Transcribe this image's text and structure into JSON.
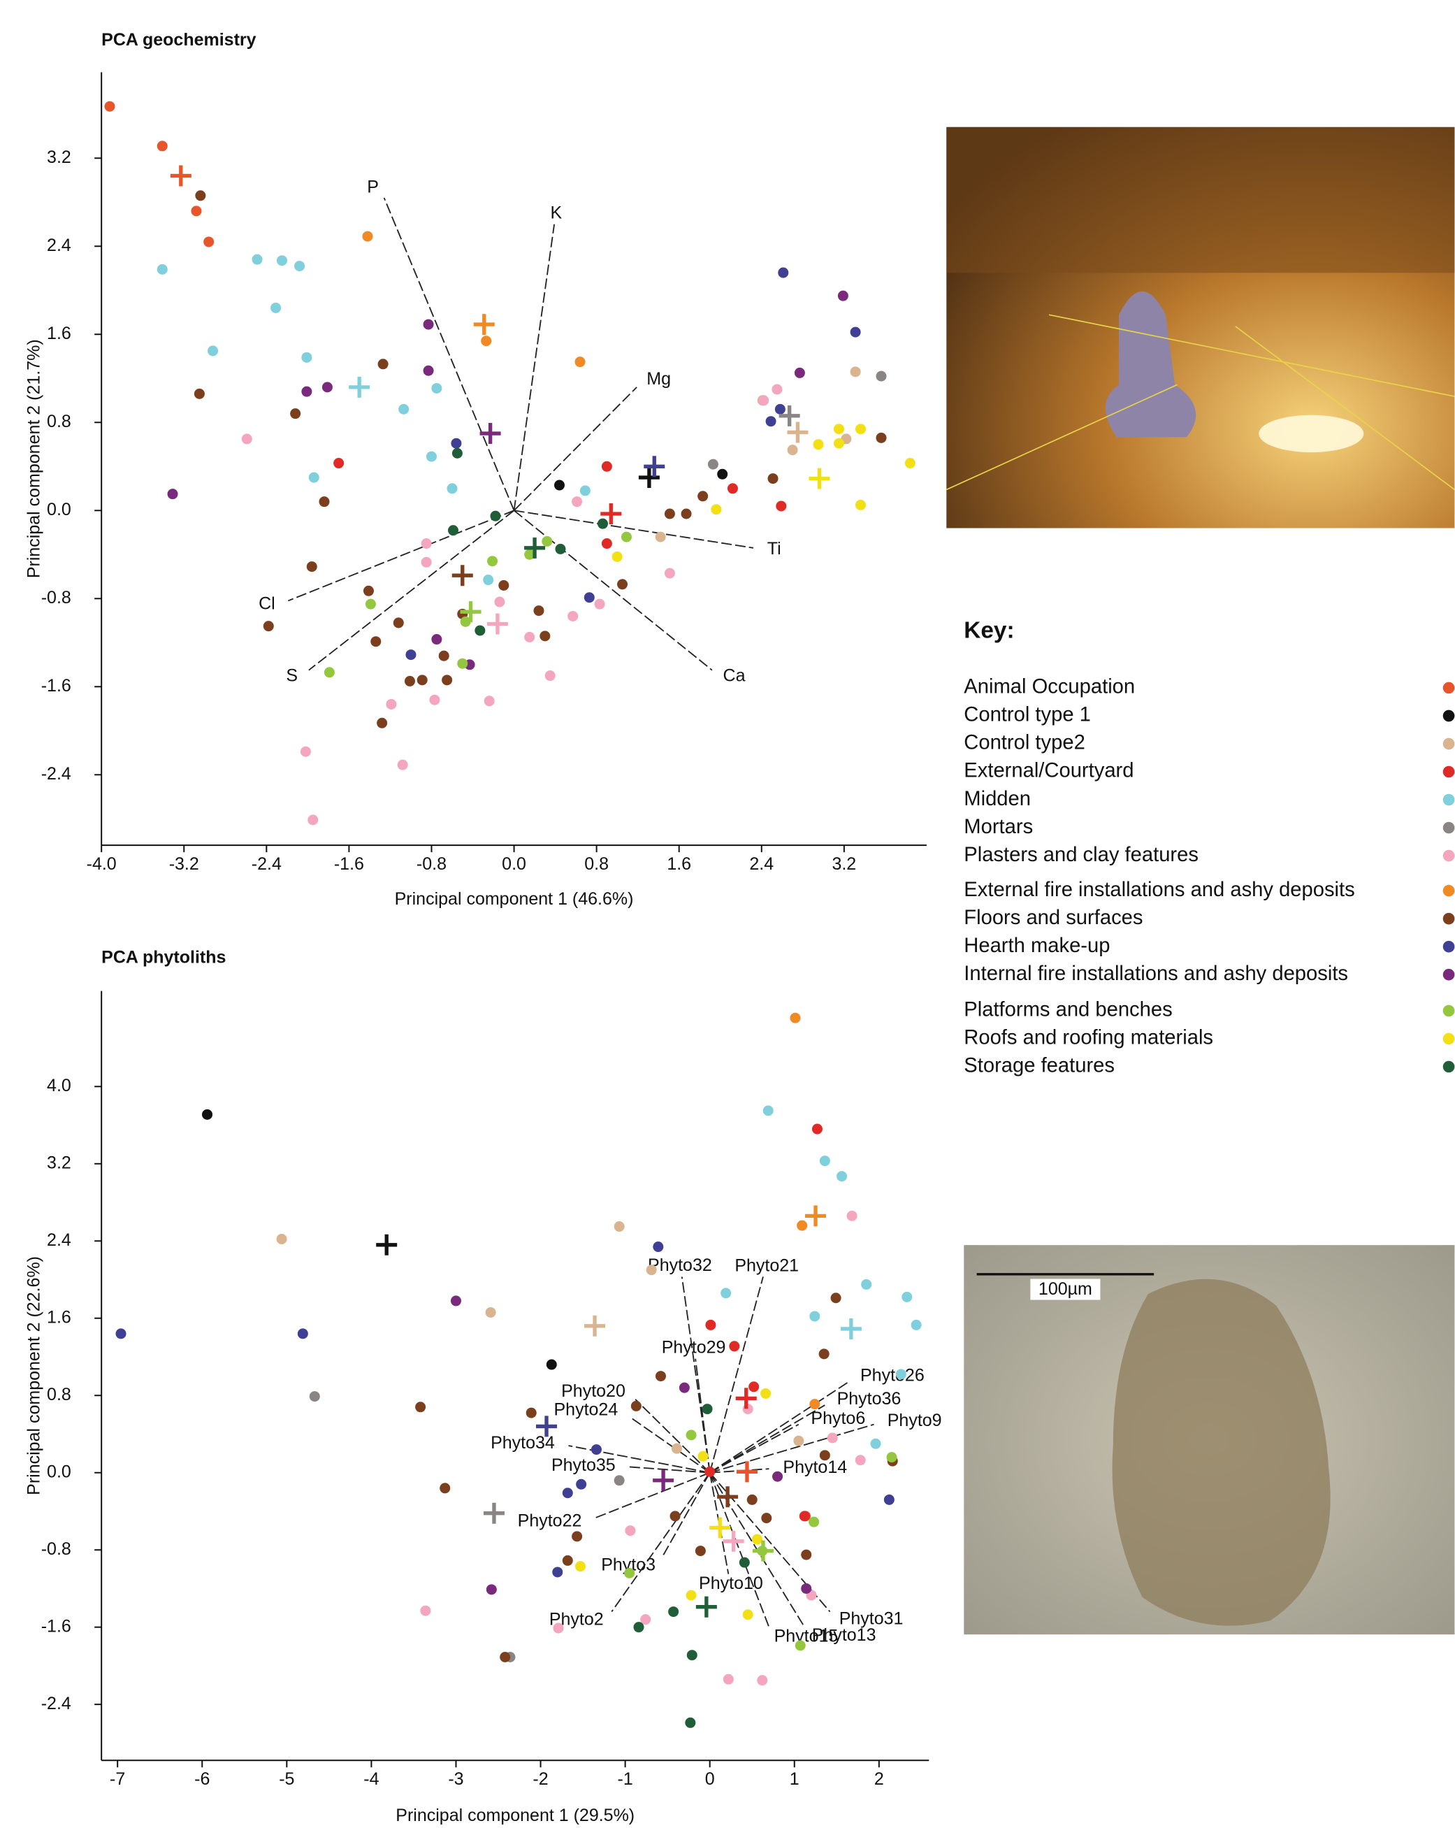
{
  "chart_data": [
    {
      "type": "scatter",
      "title": "PCA geochemistry",
      "x_label": "Principal component 1 (46.6%)",
      "y_label": "Principal component 2 (21.7%)",
      "xlim": [
        -4.0,
        4.0
      ],
      "ylim": [
        -3.04,
        3.98
      ],
      "xticks": [
        {
          "value": -4.0,
          "label": "-4.0"
        },
        -3.2,
        -2.4,
        -1.6,
        -0.8,
        {
          "value": 0,
          "label": "0.0"
        },
        0.8,
        1.6,
        2.4,
        3.2
      ],
      "yticks": [
        -2.4,
        -1.6,
        -0.8,
        {
          "value": 0,
          "label": "0.0"
        },
        0.8,
        1.6,
        2.4,
        3.2
      ],
      "vectors": [
        {
          "label": "P",
          "x": -1.26,
          "y": 2.84
        },
        {
          "label": "K",
          "x": 0.39,
          "y": 2.6
        },
        {
          "label": "Mg",
          "x": 1.19,
          "y": 1.12
        },
        {
          "label": "Ti",
          "x": 2.32,
          "y": -0.34
        },
        {
          "label": "Ca",
          "x": 1.92,
          "y": -1.45
        },
        {
          "label": "S",
          "x": -1.99,
          "y": -1.45
        },
        {
          "label": "Cl",
          "x": -2.19,
          "y": -0.82
        }
      ],
      "series": [
        {
          "name": "Animal Occupation",
          "color": "#e8552a",
          "x": [
            -3.92,
            -3.41,
            -3.08,
            -2.96
          ],
          "y": [
            3.67,
            3.31,
            2.72,
            2.44
          ],
          "centroid": [
            -3.23,
            3.04
          ]
        },
        {
          "name": "Control type 1",
          "color": "#111111",
          "x": [
            0.44,
            2.02
          ],
          "y": [
            0.23,
            0.33
          ],
          "centroid": [
            1.31,
            0.3
          ]
        },
        {
          "name": "Control type2",
          "color": "#d9b48f",
          "x": [
            1.42,
            2.41,
            2.7,
            3.22,
            3.31
          ],
          "y": [
            -0.24,
            1.0,
            0.55,
            0.65,
            1.26
          ],
          "centroid": [
            2.75,
            0.71
          ]
        },
        {
          "name": "External/Courtyard",
          "color": "#e02a26",
          "x": [
            -1.7,
            0.9,
            0.9,
            2.12,
            2.59
          ],
          "y": [
            0.43,
            0.4,
            -0.3,
            0.2,
            0.04
          ],
          "centroid": [
            0.94,
            -0.03
          ]
        },
        {
          "name": "Midden",
          "color": "#7fcfdc",
          "x": [
            -3.41,
            -2.49,
            -2.25,
            -2.08,
            -2.31,
            -2.92,
            -2.01,
            -1.94,
            -1.07,
            -0.75,
            -0.8,
            -0.6,
            -0.25,
            0.69
          ],
          "y": [
            2.19,
            2.28,
            2.27,
            2.22,
            1.84,
            1.45,
            1.39,
            0.3,
            0.92,
            1.11,
            0.49,
            0.2,
            -0.63,
            0.18
          ],
          "centroid": [
            -1.5,
            1.12
          ]
        },
        {
          "name": "Mortars",
          "color": "#8a8584",
          "x": [
            1.93,
            3.56
          ],
          "y": [
            0.42,
            1.22
          ],
          "centroid": [
            2.67,
            0.86
          ]
        },
        {
          "name": "Plasters and clay features",
          "color": "#f4a6bf",
          "x": [
            -2.59,
            -0.85,
            -0.85,
            -0.14,
            0.15,
            0.35,
            -1.19,
            -0.77,
            -0.24,
            -2.02,
            -1.08,
            -1.95,
            0.61,
            1.51,
            0.83,
            0.57,
            2.55,
            2.42
          ],
          "y": [
            0.65,
            -0.3,
            -0.47,
            -0.83,
            -1.15,
            -1.5,
            -1.76,
            -1.72,
            -1.73,
            -2.19,
            -2.31,
            -2.81,
            0.08,
            -0.57,
            -0.85,
            -0.96,
            1.1,
            1.0
          ],
          "centroid": [
            -0.16,
            -1.03
          ]
        },
        {
          "name": "External fire installations and ashy deposits",
          "color": "#f08a24",
          "x": [
            -1.42,
            0.64,
            -0.27
          ],
          "y": [
            2.49,
            1.35,
            1.54
          ],
          "centroid": [
            -0.29,
            1.69
          ]
        },
        {
          "name": "Floors and surfaces",
          "color": "#7b3f1e",
          "x": [
            -3.04,
            -3.05,
            -2.12,
            -1.27,
            -1.84,
            -1.96,
            -2.38,
            -1.41,
            -1.12,
            -1.34,
            -1.01,
            -0.68,
            -0.89,
            -0.65,
            -1.28,
            -0.5,
            -0.1,
            0.24,
            0.3,
            1.05,
            1.51,
            1.67,
            1.83,
            2.51,
            3.56
          ],
          "y": [
            2.86,
            1.06,
            0.88,
            1.33,
            0.08,
            -0.51,
            -1.05,
            -0.73,
            -1.02,
            -1.19,
            -1.55,
            -1.32,
            -1.54,
            -1.54,
            -1.93,
            -0.94,
            -0.68,
            -0.91,
            -1.14,
            -0.67,
            -0.03,
            -0.03,
            0.13,
            0.29,
            0.66
          ],
          "centroid": [
            -0.5,
            -0.59
          ]
        },
        {
          "name": "Hearth make-up",
          "color": "#3f3f94",
          "x": [
            2.61,
            3.31,
            2.58,
            2.49,
            -0.56,
            -1.0,
            0.73
          ],
          "y": [
            2.16,
            1.62,
            0.92,
            0.81,
            0.61,
            -1.31,
            -0.79
          ],
          "centroid": [
            1.36,
            0.4
          ]
        },
        {
          "name": "Internal fire installations and ashy deposits",
          "color": "#7a2a7c",
          "x": [
            -3.31,
            -2.01,
            -1.81,
            -0.83,
            -0.83,
            3.19,
            2.77,
            -0.75,
            -0.43
          ],
          "y": [
            0.15,
            1.08,
            1.12,
            1.69,
            1.27,
            1.95,
            1.25,
            -1.17,
            -1.4
          ],
          "centroid": [
            -0.23,
            0.7
          ]
        },
        {
          "name": "Platforms and benches",
          "color": "#93c83e",
          "x": [
            -1.79,
            -1.39,
            -0.5,
            -0.21,
            -0.47,
            0.32,
            0.15,
            1.09
          ],
          "y": [
            -1.47,
            -0.85,
            -1.39,
            -0.46,
            -1.01,
            -0.28,
            -0.4,
            -0.24
          ],
          "centroid": [
            -0.42,
            -0.92
          ]
        },
        {
          "name": "Roofs and roofing materials",
          "color": "#f2e014",
          "x": [
            1.0,
            1.96,
            2.95,
            3.15,
            3.36,
            3.84,
            3.36,
            3.15
          ],
          "y": [
            -0.42,
            0.01,
            0.6,
            0.74,
            0.74,
            0.43,
            0.05,
            0.61
          ],
          "centroid": [
            2.96,
            0.29
          ]
        },
        {
          "name": "Storage features",
          "color": "#1f5e36",
          "x": [
            -0.55,
            -0.18,
            -0.59,
            -0.33,
            0.45,
            0.86
          ],
          "y": [
            0.52,
            -0.05,
            -0.18,
            -1.09,
            -0.35,
            -0.12
          ],
          "centroid": [
            0.2,
            -0.34
          ]
        }
      ]
    },
    {
      "type": "scatter",
      "title": "PCA phytoliths",
      "x_label": "Principal component 1 (29.5%)",
      "y_label": "Principal component 2 (22.6%)",
      "xlim": [
        -7.19,
        2.59
      ],
      "ylim": [
        -2.98,
        4.99
      ],
      "xticks": [
        -7,
        -6,
        -5,
        -4,
        -3,
        -2,
        -1,
        0,
        1,
        2
      ],
      "yticks": [
        -2.4,
        -1.6,
        -0.8,
        {
          "value": 0,
          "label": "0.0"
        },
        0.8,
        1.6,
        2.4,
        3.2,
        {
          "value": 4,
          "label": "4.0"
        }
      ],
      "vectors": [
        {
          "label": "Phyto32",
          "x": -0.33,
          "y": 2.03
        },
        {
          "label": "Phyto21",
          "x": 0.63,
          "y": 2.03
        },
        {
          "label": "Phyto20",
          "x": -0.88,
          "y": 0.76
        },
        {
          "label": "Phyto29",
          "x": -0.17,
          "y": 1.18
        },
        {
          "label": "Phyto26",
          "x": 1.64,
          "y": 0.94
        },
        {
          "label": "Phyto24",
          "x": -0.95,
          "y": 0.58
        },
        {
          "label": "Phyto36",
          "x": 1.36,
          "y": 0.7
        },
        {
          "label": "Phyto6",
          "x": 1.05,
          "y": 0.5
        },
        {
          "label": "Phyto9",
          "x": 1.94,
          "y": 0.5
        },
        {
          "label": "Phyto34",
          "x": -1.67,
          "y": 0.28
        },
        {
          "label": "Phyto35",
          "x": -0.95,
          "y": 0.06
        },
        {
          "label": "Phyto14",
          "x": 0.7,
          "y": 0.04
        },
        {
          "label": "Phyto22",
          "x": -1.36,
          "y": -0.47
        },
        {
          "label": "Phyto3",
          "x": -0.56,
          "y": -0.87
        },
        {
          "label": "Phyto10",
          "x": 0.22,
          "y": -1.05
        },
        {
          "label": "Phyto2",
          "x": -1.16,
          "y": -1.44
        },
        {
          "label": "Phyto31",
          "x": 1.42,
          "y": -1.44
        },
        {
          "label": "Phyto15",
          "x": 0.7,
          "y": -1.6
        },
        {
          "label": "Phyto13",
          "x": 1.12,
          "y": -1.6
        }
      ],
      "series": [
        {
          "color": "#e8552a",
          "x": [
            1.13
          ],
          "y": [
            -0.45
          ],
          "centroid": [
            0.44,
            0.01
          ]
        },
        {
          "color": "#111111",
          "x": [
            -5.94,
            -1.87
          ],
          "y": [
            3.71,
            1.12
          ],
          "centroid": [
            -3.82,
            2.36
          ]
        },
        {
          "color": "#d9b48f",
          "x": [
            -5.06,
            -2.59,
            -1.07,
            -0.69,
            -0.39,
            1.05
          ],
          "y": [
            2.42,
            1.66,
            2.55,
            2.1,
            0.25,
            0.33
          ],
          "centroid": [
            -1.36,
            1.52
          ]
        },
        {
          "color": "#e02a26",
          "x": [
            1.27,
            0.01,
            0.29,
            0.52,
            0.0,
            1.12
          ],
          "y": [
            3.56,
            1.53,
            1.31,
            0.89,
            0.01,
            -0.45
          ],
          "centroid": [
            0.43,
            0.77
          ]
        },
        {
          "color": "#7fcfdc",
          "x": [
            0.69,
            1.36,
            1.56,
            0.19,
            1.24,
            1.85,
            2.33,
            2.44,
            2.26,
            1.96
          ],
          "y": [
            3.75,
            3.23,
            3.07,
            1.86,
            1.62,
            1.95,
            1.82,
            1.53,
            1.02,
            0.3
          ],
          "centroid": [
            1.67,
            1.49
          ]
        },
        {
          "color": "#8a8584",
          "x": [
            -4.67,
            -1.07,
            -2.36
          ],
          "y": [
            0.79,
            -0.08,
            -1.91
          ],
          "centroid": [
            -2.55,
            -0.42
          ]
        },
        {
          "color": "#f4a6bf",
          "x": [
            1.68,
            -3.36,
            -1.79,
            -0.76,
            -0.94,
            0.22,
            0.62,
            1.2,
            0.45,
            1.78,
            1.45
          ],
          "y": [
            2.66,
            -1.43,
            -1.61,
            -1.52,
            -0.6,
            -2.14,
            -2.15,
            -1.27,
            0.66,
            0.13,
            0.36
          ],
          "centroid": [
            0.28,
            -0.71
          ]
        },
        {
          "color": "#f08a24",
          "x": [
            1.01,
            1.09,
            1.24
          ],
          "y": [
            4.71,
            2.56,
            0.71
          ],
          "centroid": [
            1.25,
            2.66
          ]
        },
        {
          "color": "#7b3f1e",
          "x": [
            -3.42,
            -3.13,
            -2.42,
            -2.11,
            -0.87,
            -0.58,
            1.49,
            1.35,
            1.36,
            2.16,
            0.5,
            0.67,
            -0.11,
            -0.41,
            -1.68,
            -1.57,
            1.14
          ],
          "y": [
            0.68,
            -0.16,
            -1.91,
            0.62,
            0.69,
            1.0,
            1.81,
            1.23,
            0.18,
            0.12,
            -0.28,
            -0.47,
            -0.81,
            -0.45,
            -0.91,
            -0.66,
            -0.85
          ],
          "centroid": [
            0.21,
            -0.25
          ]
        },
        {
          "color": "#3f3f94",
          "x": [
            -6.96,
            -4.81,
            -0.61,
            -1.34,
            -1.52,
            -1.68,
            -1.8,
            2.12
          ],
          "y": [
            1.44,
            1.44,
            2.34,
            0.24,
            -0.12,
            -0.21,
            -1.03,
            -0.28
          ],
          "centroid": [
            -1.93,
            0.48
          ]
        },
        {
          "color": "#7a2a7c",
          "x": [
            -3.0,
            -2.58,
            -0.3,
            0.8,
            1.14
          ],
          "y": [
            1.78,
            -1.21,
            0.88,
            -0.04,
            -1.2
          ],
          "centroid": [
            -0.55,
            -0.08
          ]
        },
        {
          "color": "#93c83e",
          "x": [
            2.15,
            -0.22,
            -0.95,
            0.62,
            1.07,
            1.23
          ],
          "y": [
            0.16,
            0.39,
            -1.04,
            -0.81,
            -1.79,
            -0.51
          ],
          "centroid": [
            0.63,
            -0.81
          ]
        },
        {
          "color": "#f2e014",
          "x": [
            -1.53,
            -0.08,
            0.66,
            -0.22,
            0.45,
            0.56
          ],
          "y": [
            -0.97,
            0.17,
            0.82,
            -1.27,
            -1.47,
            -0.69
          ],
          "centroid": [
            0.12,
            -0.57
          ]
        },
        {
          "color": "#1f5e36",
          "x": [
            -0.23,
            -0.21,
            -0.84,
            -0.43,
            -0.03,
            0.41
          ],
          "y": [
            -2.59,
            -1.89,
            -1.6,
            -1.44,
            0.66,
            -0.93
          ],
          "centroid": [
            -0.04,
            -1.39
          ]
        }
      ]
    }
  ],
  "legend": {
    "title": "Key:"
  },
  "micrograph": {
    "scale_label": "100µm"
  }
}
